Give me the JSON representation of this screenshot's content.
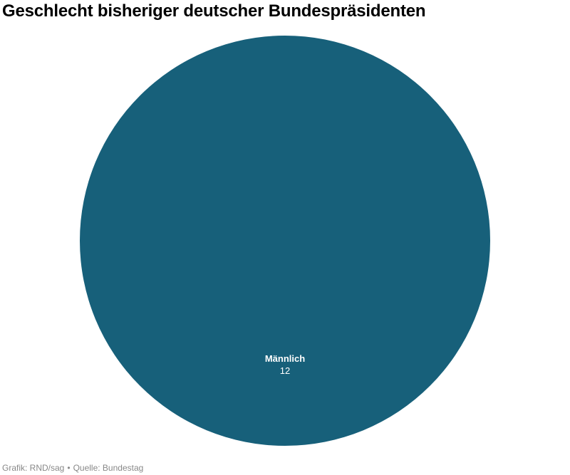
{
  "title": "Geschlecht bisheriger deutscher Bundespräsidenten",
  "footer": {
    "credit": "Grafik: RND/sag",
    "separator": "•",
    "source": "Quelle: Bundestag"
  },
  "chart_data": {
    "type": "pie",
    "title": "Geschlecht bisheriger deutscher Bundespräsidenten",
    "slices": [
      {
        "label": "Männlich",
        "value": 12,
        "color": "#17607a"
      }
    ],
    "legend": "none"
  }
}
